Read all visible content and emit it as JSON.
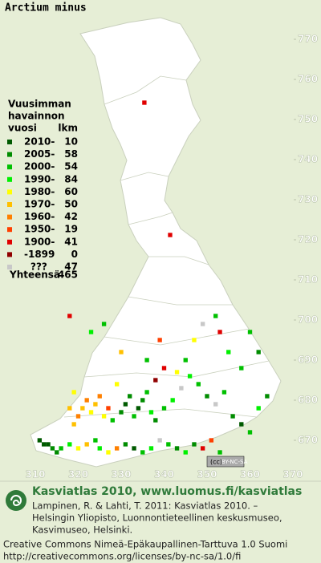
{
  "title": "Arctium minus",
  "map": {
    "xticks": [
      310,
      320,
      330,
      340,
      350,
      360,
      370
    ],
    "yticks": [
      670,
      680,
      690,
      700,
      710,
      720,
      730,
      740,
      750,
      760,
      770
    ],
    "records": [
      [
        312,
        669,
        0
      ],
      [
        313,
        669,
        0
      ],
      [
        314,
        668,
        1
      ],
      [
        311,
        670,
        0
      ],
      [
        315,
        667,
        1
      ],
      [
        316,
        668,
        2
      ],
      [
        318,
        669,
        3
      ],
      [
        320,
        668,
        4
      ],
      [
        322,
        669,
        5
      ],
      [
        324,
        670,
        2
      ],
      [
        325,
        668,
        3
      ],
      [
        327,
        667,
        4
      ],
      [
        329,
        668,
        6
      ],
      [
        331,
        669,
        1
      ],
      [
        333,
        668,
        0
      ],
      [
        335,
        667,
        2
      ],
      [
        337,
        668,
        3
      ],
      [
        339,
        670,
        10
      ],
      [
        341,
        669,
        2
      ],
      [
        343,
        668,
        1
      ],
      [
        345,
        667,
        3
      ],
      [
        347,
        669,
        1
      ],
      [
        349,
        668,
        8
      ],
      [
        351,
        670,
        7
      ],
      [
        353,
        667,
        2
      ],
      [
        319,
        674,
        5
      ],
      [
        320,
        676,
        6
      ],
      [
        321,
        678,
        5
      ],
      [
        322,
        680,
        6
      ],
      [
        323,
        677,
        4
      ],
      [
        324,
        679,
        5
      ],
      [
        325,
        681,
        6
      ],
      [
        326,
        676,
        4
      ],
      [
        327,
        678,
        7
      ],
      [
        328,
        675,
        2
      ],
      [
        330,
        677,
        1
      ],
      [
        331,
        679,
        0
      ],
      [
        332,
        681,
        1
      ],
      [
        333,
        676,
        2
      ],
      [
        334,
        678,
        0
      ],
      [
        335,
        680,
        1
      ],
      [
        336,
        682,
        2
      ],
      [
        337,
        677,
        3
      ],
      [
        338,
        675,
        1
      ],
      [
        340,
        678,
        2
      ],
      [
        342,
        680,
        3
      ],
      [
        344,
        683,
        10
      ],
      [
        346,
        686,
        3
      ],
      [
        348,
        684,
        2
      ],
      [
        350,
        681,
        1
      ],
      [
        352,
        679,
        10
      ],
      [
        354,
        682,
        2
      ],
      [
        356,
        676,
        1
      ],
      [
        358,
        674,
        0
      ],
      [
        360,
        672,
        2
      ],
      [
        362,
        678,
        3
      ],
      [
        364,
        681,
        1
      ],
      [
        358,
        688,
        2
      ],
      [
        355,
        692,
        3
      ],
      [
        353,
        697,
        8
      ],
      [
        352,
        701,
        2
      ],
      [
        349,
        699,
        10
      ],
      [
        347,
        695,
        4
      ],
      [
        345,
        690,
        2
      ],
      [
        343,
        687,
        4
      ],
      [
        340,
        688,
        8
      ],
      [
        338,
        685,
        9
      ],
      [
        336,
        690,
        2
      ],
      [
        330,
        692,
        5
      ],
      [
        329,
        684,
        4
      ],
      [
        319,
        682,
        4
      ],
      [
        318,
        678,
        5
      ],
      [
        326,
        699,
        2
      ],
      [
        335.4,
        754.2,
        8
      ],
      [
        341.4,
        721.2,
        8
      ],
      [
        318,
        701,
        8
      ],
      [
        323,
        697,
        3
      ],
      [
        360,
        697,
        2
      ],
      [
        362,
        692,
        1
      ],
      [
        339,
        695,
        7
      ]
    ]
  },
  "legend": {
    "heading": [
      "Vuusimman",
      "havainnon",
      "vuosi"
    ],
    "count_heading": "lkm",
    "items": [
      {
        "label": "2010-",
        "color": "#005a00",
        "count": 10
      },
      {
        "label": "2005-",
        "color": "#008c00",
        "count": 58
      },
      {
        "label": "2000-",
        "color": "#00c000",
        "count": 54
      },
      {
        "label": "1990-",
        "color": "#00f000",
        "count": 84
      },
      {
        "label": "1980-",
        "color": "#ffff00",
        "count": 60
      },
      {
        "label": "1970-",
        "color": "#ffc000",
        "count": 50
      },
      {
        "label": "1960-",
        "color": "#ff8000",
        "count": 42
      },
      {
        "label": "1950-",
        "color": "#ff4000",
        "count": 19
      },
      {
        "label": "1900-",
        "color": "#e00000",
        "count": 41
      },
      {
        "label": "-1899",
        "color": "#900000",
        "count": 0
      },
      {
        "label": "???",
        "color": "#c8c8c8",
        "count": 47
      }
    ],
    "total_label": "Yhteensä",
    "total": 465
  },
  "license_badge": [
    "(cc)",
    "BY-NC-SA"
  ],
  "footer": {
    "brand": "Kasviatlas 2010, www.luomus.fi/kasviatlas",
    "citation": [
      "Lampinen, R. & Lahti, T. 2011: Kasviatlas 2010. –",
      "Helsingin Yliopisto, Luonnontieteellinen keskusmuseo,",
      "Kasvimuseo, Helsinki."
    ],
    "license": [
      "Creative Commons Nimeä-Epäkaupallinen-Tarttuva 1.0 Suomi",
      "http://creativecommons.org/licenses/by-nc-sa/1.0/fi"
    ]
  }
}
